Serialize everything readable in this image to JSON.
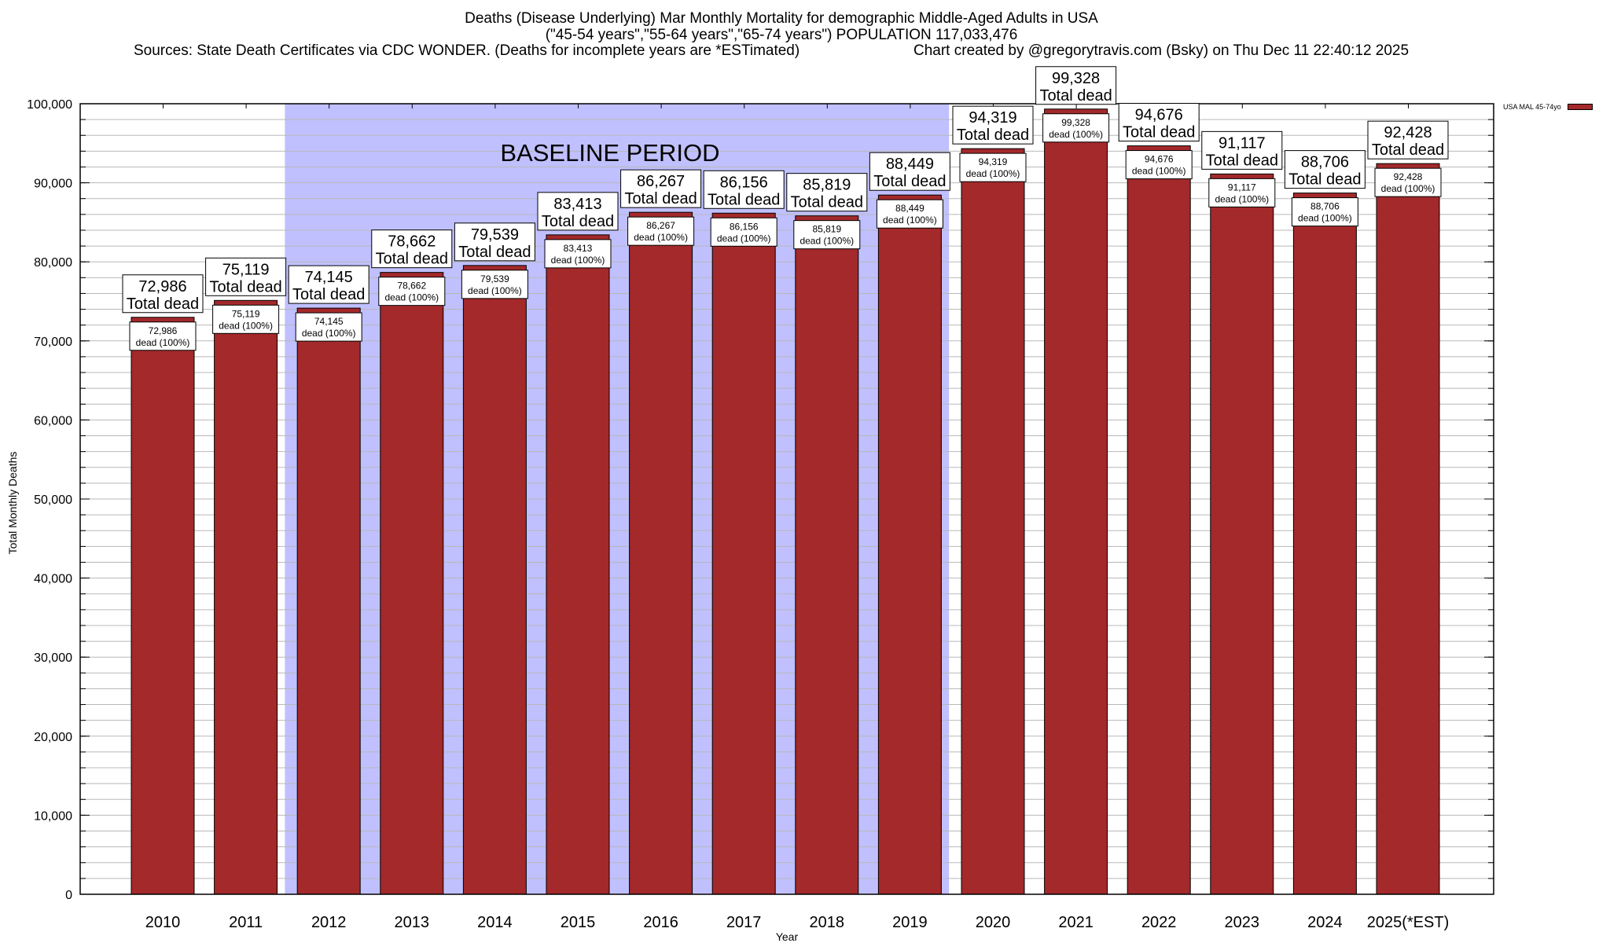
{
  "header": {
    "title": "Deaths (Disease Underlying) Mar Monthly Mortality for demographic Middle-Aged Adults in USA",
    "subtitle": "(\"45-54 years\",\"55-64 years\",\"65-74 years\") POPULATION 117,033,476",
    "sources": "Sources: State Death Certificates via CDC WONDER. (Deaths for incomplete years are *ESTimated)",
    "credit": "Chart created by @gregorytravis.com (Bsky) on Thu Dec 11 22:40:12 2025"
  },
  "chart_data": {
    "type": "bar",
    "title": "Deaths (Disease Underlying) Mar Monthly Mortality for demographic Middle-Aged Adults in USA",
    "xlabel": "Year",
    "ylabel": "Total Monthly Deaths",
    "ylim": [
      0,
      100000
    ],
    "yticks": [
      0,
      10000,
      20000,
      30000,
      40000,
      50000,
      60000,
      70000,
      80000,
      90000,
      100000
    ],
    "ytick_labels": [
      "0",
      "10,000",
      "20,000",
      "30,000",
      "40,000",
      "50,000",
      "60,000",
      "70,000",
      "80,000",
      "90,000",
      "100,000"
    ],
    "minor_grid_step": 2000,
    "grid": true,
    "categories": [
      "2010",
      "2011",
      "2012",
      "2013",
      "2014",
      "2015",
      "2016",
      "2017",
      "2018",
      "2019",
      "2020",
      "2021",
      "2022",
      "2023",
      "2024",
      "2025(*EST)"
    ],
    "series": [
      {
        "name": "USA MAL 45-74yo",
        "color": "#a3292b",
        "values": [
          72986,
          75119,
          74145,
          78662,
          79539,
          83413,
          86267,
          86156,
          85819,
          88449,
          94319,
          99328,
          94676,
          91117,
          88706,
          92428
        ],
        "value_labels": [
          "72,986",
          "75,119",
          "74,145",
          "78,662",
          "79,539",
          "83,413",
          "86,267",
          "86,156",
          "85,819",
          "88,449",
          "94,319",
          "99,328",
          "94,676",
          "91,117",
          "88,706",
          "92,428"
        ],
        "percent_label": "dead (100%)"
      }
    ],
    "total_label_suffix": "Total dead",
    "legend": {
      "position": "top-right",
      "entries": [
        "USA MAL 45-74yo"
      ]
    },
    "annotations": [
      {
        "type": "shaded-region",
        "label": "BASELINE PERIOD",
        "from_category": "2012",
        "to_category": "2019",
        "color": "#c0c0ff"
      }
    ]
  }
}
